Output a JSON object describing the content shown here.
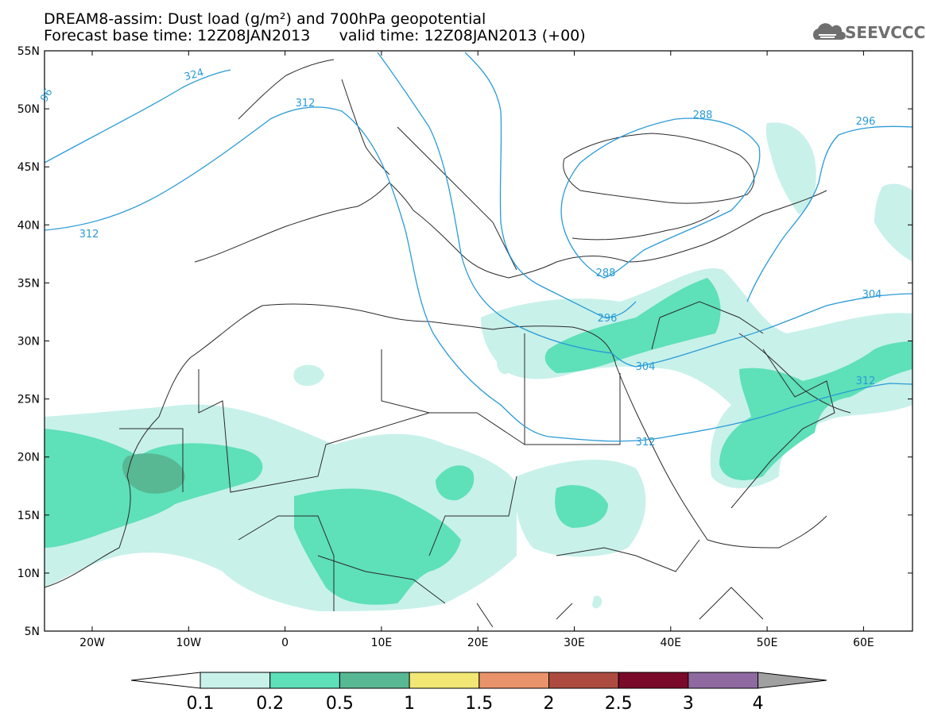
{
  "title": {
    "line1": "DREAM8-assim: Dust load (g/m²) and 700hPa geopotential",
    "line2": "Forecast base time: 12Z08JAN2013      valid time: 12Z08JAN2013 (+00)"
  },
  "logo": {
    "text": "SEEVCCC",
    "icon": "cloud-logo-icon"
  },
  "axes": {
    "lat_labels": [
      "55N",
      "50N",
      "45N",
      "40N",
      "35N",
      "30N",
      "25N",
      "20N",
      "15N",
      "10N",
      "5N"
    ],
    "lon_labels": [
      "20W",
      "10W",
      "0",
      "10E",
      "20E",
      "30E",
      "40E",
      "50E",
      "60E"
    ]
  },
  "contours": {
    "labels": [
      "324",
      "312",
      "96",
      "312",
      "288",
      "296",
      "288",
      "296",
      "304",
      "304",
      "312",
      "312"
    ]
  },
  "colorbar": {
    "ticks": [
      "0.1",
      "0.2",
      "0.5",
      "1",
      "1.5",
      "2",
      "2.5",
      "3",
      "4"
    ],
    "colors": [
      "#c8f1ea",
      "#5ee0b9",
      "#58b894",
      "#f2e774",
      "#e9936b",
      "#ad4b41",
      "#7a0a2a",
      "#8e6aa1",
      "#a0a0a0"
    ]
  },
  "colors": {
    "contour": "#2a9bd6",
    "dust_low": "#c8f1ea",
    "dust_mid": "#5ee0b9",
    "dust_high": "#58b894"
  }
}
